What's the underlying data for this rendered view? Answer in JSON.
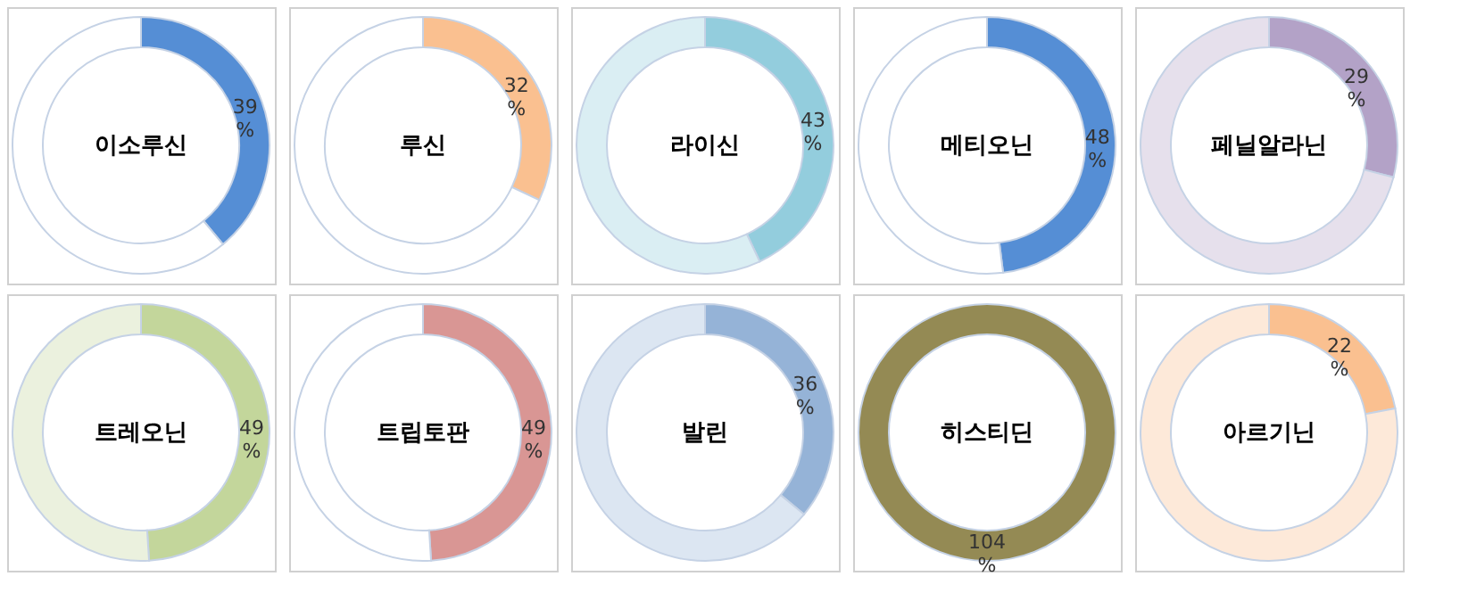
{
  "chart_data": [
    {
      "type": "donut",
      "title": "이소루신",
      "categories": [
        null,
        null
      ],
      "values": [
        39,
        61
      ],
      "colors": [
        "#558ed5",
        "#ffffff"
      ],
      "value_labels": [
        "39 %",
        null
      ]
    },
    {
      "type": "donut",
      "title": "루신",
      "categories": [
        null,
        null
      ],
      "values": [
        32,
        68
      ],
      "colors": [
        "#fac090",
        "#ffffff"
      ],
      "value_labels": [
        "32 %",
        null
      ]
    },
    {
      "type": "donut",
      "title": "라이신",
      "categories": [
        null,
        null
      ],
      "values": [
        43,
        57
      ],
      "colors": [
        "#93cddd",
        "#daeef3"
      ],
      "value_labels": [
        "43 %",
        null
      ]
    },
    {
      "type": "donut",
      "title": "메티오닌",
      "categories": [
        null,
        null
      ],
      "values": [
        48,
        52
      ],
      "colors": [
        "#558ed5",
        "#ffffff"
      ],
      "value_labels": [
        "48 %",
        null
      ]
    },
    {
      "type": "donut",
      "title": "페닐알라닌",
      "categories": [
        null,
        null
      ],
      "values": [
        29,
        71
      ],
      "colors": [
        "#b3a2c7",
        "#e6e0ec"
      ],
      "value_labels": [
        "29 %",
        null
      ]
    },
    {
      "type": "donut",
      "title": "트레오닌",
      "categories": [
        null,
        null
      ],
      "values": [
        49,
        51
      ],
      "colors": [
        "#c3d69b",
        "#ebf1de"
      ],
      "value_labels": [
        "49 %",
        null
      ]
    },
    {
      "type": "donut",
      "title": "트립토판",
      "categories": [
        null,
        null
      ],
      "values": [
        49,
        51
      ],
      "colors": [
        "#d99694",
        "#ffffff"
      ],
      "value_labels": [
        "49 %",
        null
      ]
    },
    {
      "type": "donut",
      "title": "발린",
      "categories": [
        null,
        null
      ],
      "values": [
        36,
        64
      ],
      "colors": [
        "#95b3d7",
        "#dce6f2"
      ],
      "value_labels": [
        "36 %",
        null
      ]
    },
    {
      "type": "donut",
      "title": "히스티딘",
      "categories": [
        null
      ],
      "values": [
        104
      ],
      "colors": [
        "#948a54"
      ],
      "value_labels": [
        "104 %"
      ]
    },
    {
      "type": "donut",
      "title": "아르기닌",
      "categories": [
        null,
        null
      ],
      "values": [
        22,
        78
      ],
      "colors": [
        "#fac090",
        "#fde9d9"
      ],
      "value_labels": [
        "22 %",
        null
      ]
    }
  ]
}
